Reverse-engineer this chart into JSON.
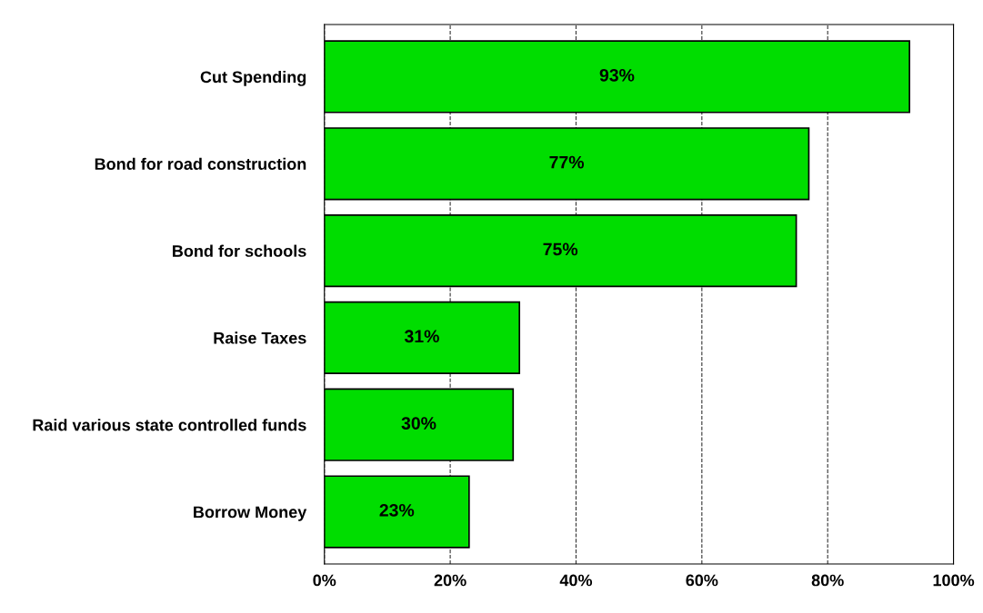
{
  "chart_data": {
    "type": "bar",
    "orientation": "horizontal",
    "categories": [
      "Cut Spending",
      "Bond for road construction",
      "Bond for schools",
      "Raise Taxes",
      "Raid various state controlled funds",
      "Borrow Money"
    ],
    "values": [
      93,
      77,
      75,
      31,
      30,
      23
    ],
    "value_labels": [
      "93%",
      "77%",
      "75%",
      "31%",
      "30%",
      "23%"
    ],
    "color": "#00dd00",
    "xlim": [
      0,
      100
    ],
    "xticks": [
      {
        "value": 0,
        "label": "0%"
      },
      {
        "value": 20,
        "label": "20%"
      },
      {
        "value": 40,
        "label": "40%"
      },
      {
        "value": 60,
        "label": "60%"
      },
      {
        "value": 80,
        "label": "80%"
      },
      {
        "value": 100,
        "label": "100%"
      }
    ],
    "grid": "x"
  }
}
